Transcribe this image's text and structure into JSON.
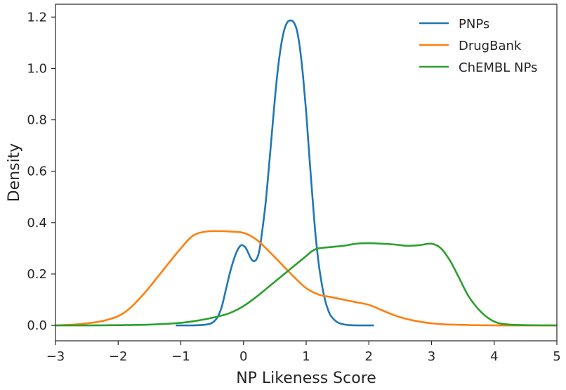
{
  "chart_data": {
    "type": "line",
    "title": "",
    "xlabel": "NP Likeness Score",
    "ylabel": "Density",
    "xlim": [
      -3,
      5
    ],
    "ylim": [
      -0.06,
      1.25
    ],
    "xticks": [
      -3,
      -2,
      -1,
      0,
      1,
      2,
      3,
      4,
      5
    ],
    "xtick_labels": [
      "−3",
      "−2",
      "−1",
      "0",
      "1",
      "2",
      "3",
      "4",
      "5"
    ],
    "yticks": [
      0.0,
      0.2,
      0.4,
      0.6,
      0.8,
      1.0,
      1.2
    ],
    "ytick_labels": [
      "0.0",
      "0.2",
      "0.4",
      "0.6",
      "0.8",
      "1.0",
      "1.2"
    ],
    "grid": false,
    "legend_position": "top-right",
    "series": [
      {
        "name": "PNPs",
        "color": "#1f77b4",
        "x": [
          -1.08,
          -0.8,
          -0.6,
          -0.5,
          -0.42,
          -0.35,
          -0.28,
          -0.2,
          -0.12,
          -0.05,
          0.0,
          0.04,
          0.08,
          0.12,
          0.16,
          0.2,
          0.23,
          0.26,
          0.3,
          0.35,
          0.4,
          0.45,
          0.5,
          0.55,
          0.6,
          0.65,
          0.7,
          0.75,
          0.8,
          0.85,
          0.9,
          0.95,
          1.0,
          1.05,
          1.1,
          1.15,
          1.2,
          1.25,
          1.3,
          1.35,
          1.4,
          1.5,
          1.6,
          1.7,
          1.85,
          2.08
        ],
        "y": [
          0.0,
          0.0,
          0.003,
          0.01,
          0.03,
          0.07,
          0.14,
          0.22,
          0.28,
          0.31,
          0.31,
          0.3,
          0.28,
          0.26,
          0.25,
          0.255,
          0.27,
          0.3,
          0.37,
          0.47,
          0.6,
          0.74,
          0.88,
          1.0,
          1.09,
          1.15,
          1.18,
          1.187,
          1.18,
          1.15,
          1.08,
          0.97,
          0.83,
          0.66,
          0.5,
          0.35,
          0.24,
          0.16,
          0.1,
          0.06,
          0.035,
          0.012,
          0.004,
          0.001,
          0.0,
          0.0
        ]
      },
      {
        "name": "DrugBank",
        "color": "#ff7f0e",
        "x": [
          -3.0,
          -2.6,
          -2.2,
          -1.9,
          -1.6,
          -1.3,
          -1.0,
          -0.8,
          -0.6,
          -0.4,
          -0.2,
          0.0,
          0.2,
          0.4,
          0.6,
          0.8,
          1.0,
          1.2,
          1.4,
          1.6,
          1.8,
          2.0,
          2.2,
          2.4,
          2.6,
          2.8,
          3.0,
          3.2,
          3.5,
          3.8,
          4.1,
          4.4,
          5.0
        ],
        "y": [
          0.0,
          0.005,
          0.02,
          0.05,
          0.12,
          0.21,
          0.3,
          0.35,
          0.365,
          0.367,
          0.365,
          0.36,
          0.335,
          0.29,
          0.24,
          0.19,
          0.145,
          0.12,
          0.11,
          0.1,
          0.09,
          0.08,
          0.06,
          0.04,
          0.025,
          0.015,
          0.008,
          0.004,
          0.002,
          0.0005,
          0.0,
          0.0,
          0.0
        ]
      },
      {
        "name": "ChEMBL NPs",
        "color": "#2ca02c",
        "x": [
          -3.0,
          -2.5,
          -2.0,
          -1.5,
          -1.0,
          -0.7,
          -0.4,
          -0.2,
          0.0,
          0.2,
          0.4,
          0.6,
          0.8,
          1.0,
          1.1,
          1.2,
          1.4,
          1.6,
          1.8,
          2.0,
          2.2,
          2.4,
          2.6,
          2.8,
          3.0,
          3.15,
          3.3,
          3.45,
          3.6,
          3.8,
          4.0,
          4.2,
          4.5,
          5.0
        ],
        "y": [
          0.0,
          0.0,
          0.001,
          0.003,
          0.01,
          0.02,
          0.035,
          0.05,
          0.075,
          0.11,
          0.15,
          0.19,
          0.23,
          0.27,
          0.29,
          0.3,
          0.305,
          0.31,
          0.318,
          0.32,
          0.318,
          0.315,
          0.31,
          0.312,
          0.318,
          0.3,
          0.25,
          0.18,
          0.11,
          0.05,
          0.015,
          0.004,
          0.001,
          0.0
        ]
      }
    ]
  }
}
